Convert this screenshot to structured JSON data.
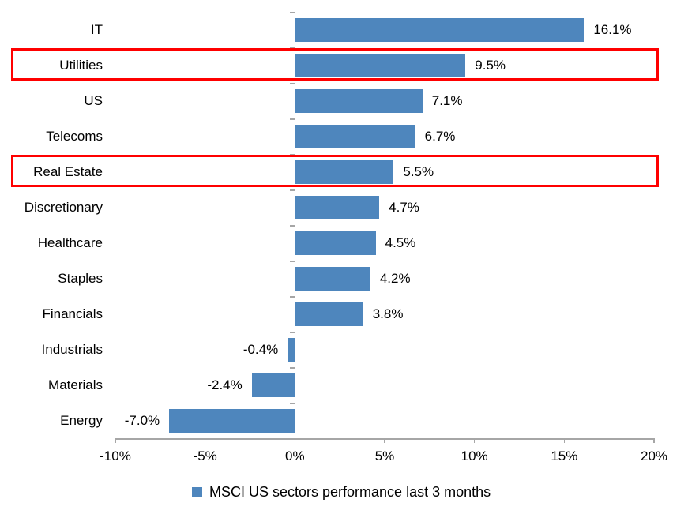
{
  "chart_data": {
    "type": "bar",
    "orientation": "horizontal",
    "title": "",
    "xlabel": "",
    "ylabel": "",
    "categories": [
      "IT",
      "Utilities",
      "US",
      "Telecoms",
      "Real Estate",
      "Discretionary",
      "Healthcare",
      "Staples",
      "Financials",
      "Industrials",
      "Materials",
      "Energy"
    ],
    "values": [
      16.1,
      9.5,
      7.1,
      6.7,
      5.5,
      4.7,
      4.5,
      4.2,
      3.8,
      -0.4,
      -2.4,
      -7.0
    ],
    "data_labels": [
      "16.1%",
      "9.5%",
      "7.1%",
      "6.7%",
      "5.5%",
      "4.7%",
      "4.5%",
      "4.2%",
      "3.8%",
      "-0.4%",
      "-2.4%",
      "-7.0%"
    ],
    "highlighted_categories": [
      "Utilities",
      "Real Estate"
    ],
    "xlim": [
      -10,
      20
    ],
    "x_ticks": [
      {
        "value": -10,
        "label": "-10%"
      },
      {
        "value": -5,
        "label": "-5%"
      },
      {
        "value": 0,
        "label": "0%"
      },
      {
        "value": 5,
        "label": "5%"
      },
      {
        "value": 10,
        "label": "10%"
      },
      {
        "value": 15,
        "label": "15%"
      },
      {
        "value": 20,
        "label": "20%"
      }
    ],
    "grid": false,
    "legend": "MSCI US sectors performance last 3 months",
    "legend_position": "bottom",
    "colors": {
      "bar": "#4E86BD",
      "highlight_box": "#FF0000",
      "axis": "#A6A6A6",
      "text": "#000000",
      "background": "#FFFFFF"
    }
  }
}
